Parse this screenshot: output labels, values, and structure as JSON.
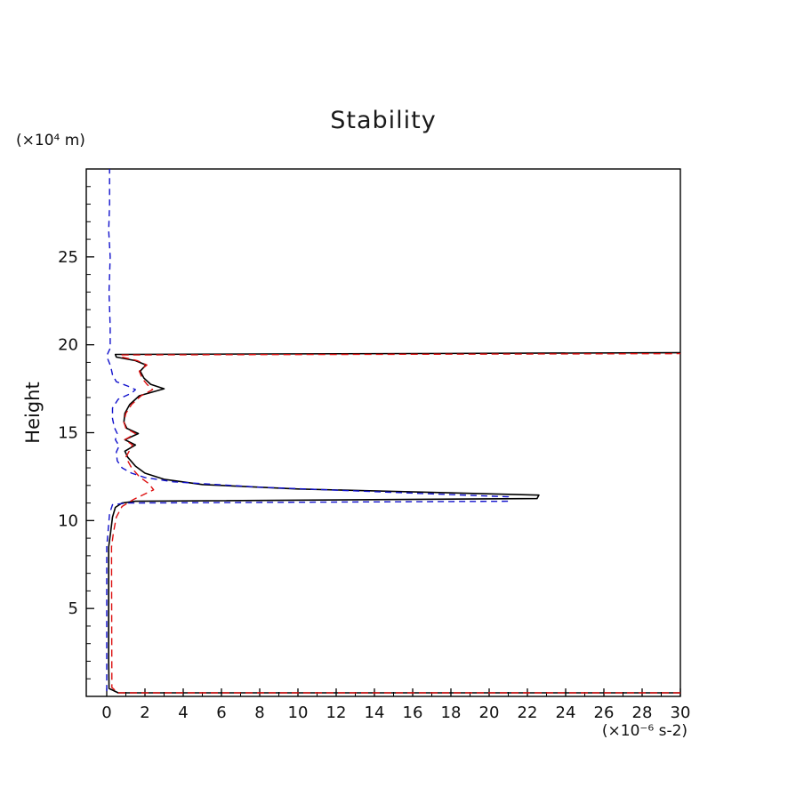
{
  "chart_data": {
    "type": "line",
    "title": "Stability",
    "ylabel": "Height",
    "y_unit": "(×10⁴ m)",
    "x_unit": "(×10⁻⁶ s-2)",
    "xlabel": "",
    "xlim": [
      0,
      30
    ],
    "ylim": [
      0,
      30
    ],
    "grid": false,
    "legend": null,
    "x_major_ticks": [
      0,
      2,
      4,
      6,
      8,
      10,
      12,
      14,
      16,
      18,
      20,
      22,
      24,
      26,
      28,
      30
    ],
    "x_minor_ticks": [
      1,
      3,
      5,
      7,
      9,
      11,
      13,
      15,
      17,
      19,
      21,
      23,
      25,
      27,
      29
    ],
    "y_major_ticks": [
      5,
      10,
      15,
      20,
      25
    ],
    "y_minor_ticks": [
      1,
      2,
      3,
      4,
      6,
      7,
      8,
      9,
      11,
      12,
      13,
      14,
      16,
      17,
      18,
      19,
      21,
      22,
      23,
      24,
      26,
      27,
      28,
      29
    ],
    "axis_color": "#000000",
    "series": [
      {
        "name": "stability-solid-black",
        "color": "#000000",
        "dash": "",
        "width": 1.6,
        "points": [
          [
            30,
            0.2
          ],
          [
            0.6,
            0.2
          ],
          [
            0.12,
            0.45
          ],
          [
            0.1,
            2.0
          ],
          [
            0.1,
            8.5
          ],
          [
            0.2,
            9.3
          ],
          [
            0.3,
            10.2
          ],
          [
            0.45,
            10.75
          ],
          [
            0.8,
            11.0
          ],
          [
            1.5,
            11.1
          ],
          [
            22.5,
            11.25
          ],
          [
            22.6,
            11.45
          ],
          [
            10.0,
            11.8
          ],
          [
            5.0,
            12.05
          ],
          [
            3.0,
            12.35
          ],
          [
            2.0,
            12.7
          ],
          [
            1.5,
            13.1
          ],
          [
            1.1,
            13.6
          ],
          [
            0.95,
            13.95
          ],
          [
            1.5,
            14.3
          ],
          [
            0.95,
            14.6
          ],
          [
            1.65,
            14.95
          ],
          [
            1.05,
            15.25
          ],
          [
            0.9,
            15.6
          ],
          [
            0.95,
            16.1
          ],
          [
            1.2,
            16.6
          ],
          [
            1.7,
            17.1
          ],
          [
            3.0,
            17.5
          ],
          [
            2.3,
            17.75
          ],
          [
            1.95,
            18.1
          ],
          [
            1.75,
            18.5
          ],
          [
            2.05,
            18.85
          ],
          [
            1.5,
            19.1
          ],
          [
            0.5,
            19.3
          ],
          [
            0.45,
            19.45
          ],
          [
            30,
            19.55
          ]
        ]
      },
      {
        "name": "stability-dashed-blue",
        "color": "#1111cc",
        "dash": "7 5",
        "width": 1.4,
        "points": [
          [
            0.0,
            0.3
          ],
          [
            0.0,
            8.5
          ],
          [
            0.08,
            9.5
          ],
          [
            0.15,
            10.4
          ],
          [
            0.3,
            10.9
          ],
          [
            1.0,
            11.0
          ],
          [
            21.0,
            11.1
          ],
          [
            21.0,
            11.35
          ],
          [
            8.0,
            11.9
          ],
          [
            3.5,
            12.2
          ],
          [
            2.0,
            12.45
          ],
          [
            1.3,
            12.7
          ],
          [
            0.8,
            13.0
          ],
          [
            0.55,
            13.4
          ],
          [
            0.5,
            13.9
          ],
          [
            0.65,
            14.25
          ],
          [
            0.45,
            14.6
          ],
          [
            0.55,
            14.95
          ],
          [
            0.4,
            15.3
          ],
          [
            0.3,
            15.8
          ],
          [
            0.3,
            16.4
          ],
          [
            0.6,
            16.9
          ],
          [
            1.3,
            17.25
          ],
          [
            1.5,
            17.45
          ],
          [
            1.1,
            17.65
          ],
          [
            0.5,
            17.9
          ],
          [
            0.3,
            18.3
          ],
          [
            0.2,
            18.8
          ],
          [
            0.05,
            19.2
          ],
          [
            0.05,
            19.5
          ],
          [
            0.18,
            19.8
          ],
          [
            0.18,
            21.0
          ],
          [
            0.12,
            23.0
          ],
          [
            0.18,
            25.0
          ],
          [
            0.1,
            26.5
          ],
          [
            0.15,
            28.0
          ],
          [
            0.15,
            30.0
          ]
        ]
      },
      {
        "name": "stability-dashed-red",
        "color": "#dd1111",
        "dash": "8 5",
        "width": 1.4,
        "points": [
          [
            30,
            0.2
          ],
          [
            0.6,
            0.2
          ],
          [
            0.27,
            0.5
          ],
          [
            0.25,
            8.5
          ],
          [
            0.35,
            9.3
          ],
          [
            0.5,
            10.2
          ],
          [
            0.8,
            10.8
          ],
          [
            1.4,
            11.2
          ],
          [
            2.45,
            11.75
          ],
          [
            2.2,
            12.1
          ],
          [
            1.7,
            12.5
          ],
          [
            1.3,
            13.0
          ],
          [
            1.0,
            13.6
          ],
          [
            1.35,
            14.3
          ],
          [
            0.95,
            14.6
          ],
          [
            1.5,
            14.95
          ],
          [
            1.0,
            15.25
          ],
          [
            0.9,
            15.6
          ],
          [
            1.0,
            16.1
          ],
          [
            1.3,
            16.6
          ],
          [
            1.8,
            17.1
          ],
          [
            2.4,
            17.45
          ],
          [
            2.1,
            17.75
          ],
          [
            1.85,
            18.1
          ],
          [
            1.7,
            18.5
          ],
          [
            2.1,
            18.85
          ],
          [
            1.6,
            19.1
          ],
          [
            0.8,
            19.3
          ],
          [
            0.7,
            19.42
          ],
          [
            30,
            19.5
          ]
        ]
      }
    ]
  }
}
